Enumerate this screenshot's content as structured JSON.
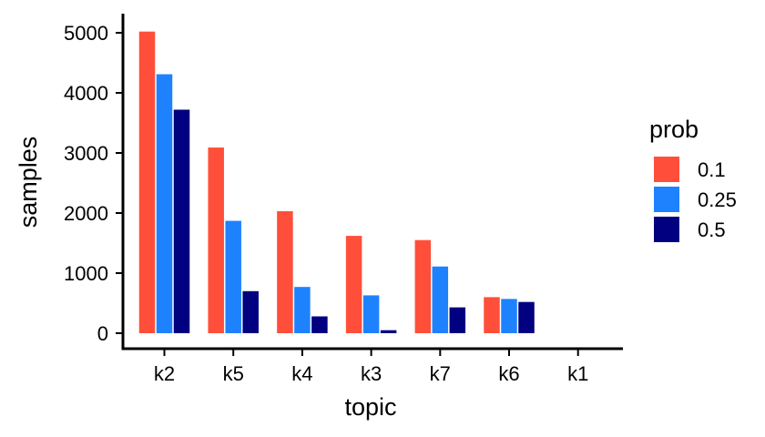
{
  "chart_data": {
    "type": "bar",
    "xlabel": "topic",
    "ylabel": "samples",
    "categories": [
      "k2",
      "k5",
      "k4",
      "k3",
      "k7",
      "k6",
      "k1"
    ],
    "ylim": [
      0,
      5200
    ],
    "yticks": [
      0,
      1000,
      2000,
      3000,
      4000,
      5000
    ],
    "grid": false,
    "legend": {
      "title": "prob",
      "placement": "right"
    },
    "series": [
      {
        "name": "0.1",
        "color": "#FF4F3A",
        "values": [
          5020,
          3090,
          2030,
          1620,
          1550,
          600,
          0
        ]
      },
      {
        "name": "0.25",
        "color": "#1E82FF",
        "values": [
          4310,
          1870,
          770,
          630,
          1110,
          570,
          0
        ]
      },
      {
        "name": "0.5",
        "color": "#000080",
        "values": [
          3720,
          700,
          280,
          50,
          430,
          520,
          0
        ]
      }
    ]
  }
}
